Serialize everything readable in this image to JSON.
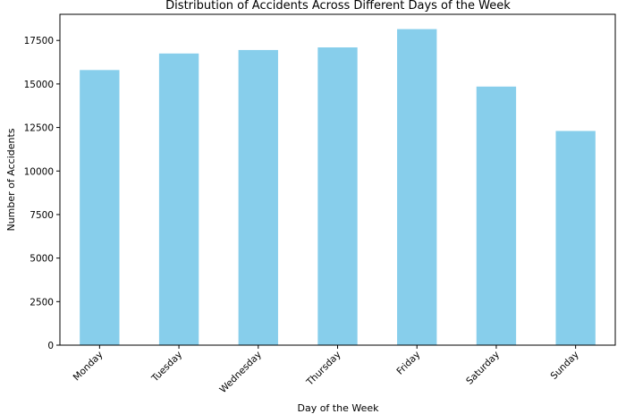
{
  "chart_data": {
    "type": "bar",
    "title": "Distribution of Accidents Across Different Days of the Week",
    "xlabel": "Day of the Week",
    "ylabel": "Number of Accidents",
    "categories": [
      "Monday",
      "Tuesday",
      "Wednesday",
      "Thursday",
      "Friday",
      "Saturday",
      "Sunday"
    ],
    "values": [
      15800,
      16750,
      16950,
      17100,
      18150,
      14850,
      12300
    ],
    "ylim": [
      0,
      19000
    ],
    "yticks": [
      0,
      2500,
      5000,
      7500,
      10000,
      12500,
      15000,
      17500
    ],
    "grid": false,
    "bar_color": "#87CEEB"
  }
}
